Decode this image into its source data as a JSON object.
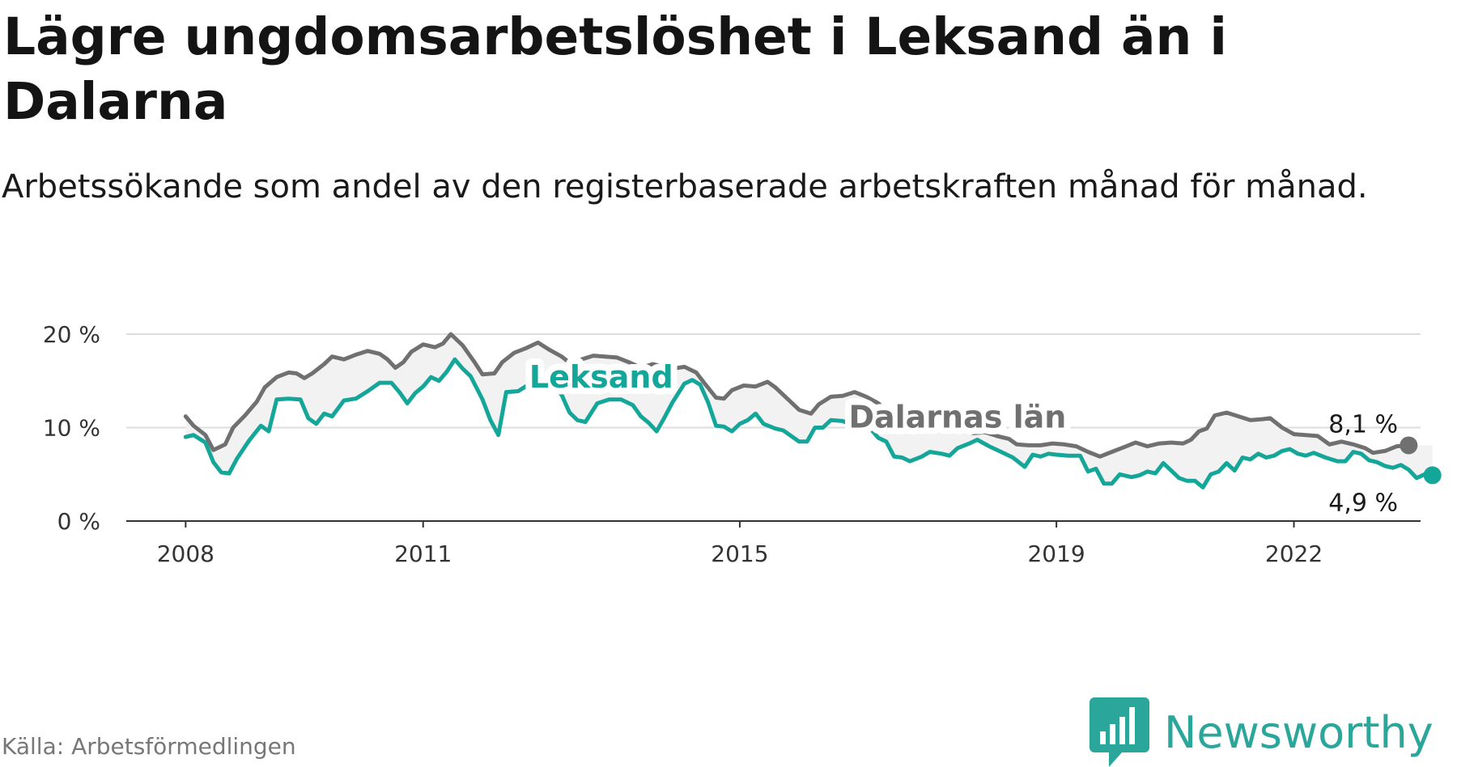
{
  "title": "Lägre ungdomsarbetslöshet i Leksand än i Dalarna",
  "subtitle": "Arbetssökande som andel av den registerbaserade arbetskraften månad för månad.",
  "source": "Källa: Arbetsförmedlingen",
  "brand": {
    "name": "Newsworthy",
    "icon": "bar-chart-speech-bubble-icon",
    "color": "#2aa69a"
  },
  "chart_data": {
    "type": "line",
    "title": "Lägre ungdomsarbetslöshet i Leksand än i Dalarna",
    "xlabel": "",
    "ylabel": "",
    "xlim": [
      2007.25,
      2023.6
    ],
    "ylim": [
      0,
      20
    ],
    "grid": true,
    "y_ticks": [
      {
        "value": 0,
        "label": "0 %"
      },
      {
        "value": 10,
        "label": "10 %"
      },
      {
        "value": 20,
        "label": "20 %"
      }
    ],
    "x_ticks": [
      {
        "value": 2008,
        "label": "2008"
      },
      {
        "value": 2011,
        "label": "2011"
      },
      {
        "value": 2015,
        "label": "2015"
      },
      {
        "value": 2019,
        "label": "2019"
      },
      {
        "value": 2022,
        "label": "2022"
      }
    ],
    "series": [
      {
        "name": "Dalarnas län",
        "color": "#707070",
        "last_value_label": "8,1 %",
        "points": [
          [
            2008.0,
            11.2
          ],
          [
            2008.1,
            10.2
          ],
          [
            2008.25,
            9.2
          ],
          [
            2008.35,
            7.6
          ],
          [
            2008.5,
            8.2
          ],
          [
            2008.6,
            10.0
          ],
          [
            2008.75,
            11.3
          ],
          [
            2008.9,
            12.8
          ],
          [
            2009.0,
            14.3
          ],
          [
            2009.15,
            15.4
          ],
          [
            2009.3,
            15.9
          ],
          [
            2009.4,
            15.8
          ],
          [
            2009.5,
            15.3
          ],
          [
            2009.6,
            15.8
          ],
          [
            2009.75,
            16.8
          ],
          [
            2009.85,
            17.6
          ],
          [
            2010.0,
            17.3
          ],
          [
            2010.15,
            17.8
          ],
          [
            2010.3,
            18.2
          ],
          [
            2010.45,
            17.9
          ],
          [
            2010.55,
            17.3
          ],
          [
            2010.65,
            16.4
          ],
          [
            2010.75,
            17.0
          ],
          [
            2010.85,
            18.1
          ],
          [
            2011.0,
            18.9
          ],
          [
            2011.15,
            18.6
          ],
          [
            2011.25,
            19.0
          ],
          [
            2011.35,
            20.0
          ],
          [
            2011.5,
            18.8
          ],
          [
            2011.65,
            17.0
          ],
          [
            2011.75,
            15.7
          ],
          [
            2011.9,
            15.8
          ],
          [
            2012.0,
            17.0
          ],
          [
            2012.15,
            18.0
          ],
          [
            2012.3,
            18.5
          ],
          [
            2012.45,
            19.1
          ],
          [
            2012.6,
            18.3
          ],
          [
            2012.75,
            17.6
          ],
          [
            2012.9,
            16.6
          ],
          [
            2013.0,
            17.3
          ],
          [
            2013.15,
            17.7
          ],
          [
            2013.3,
            17.6
          ],
          [
            2013.45,
            17.5
          ],
          [
            2013.6,
            17.0
          ],
          [
            2013.75,
            16.4
          ],
          [
            2013.9,
            16.8
          ],
          [
            2014.0,
            16.6
          ],
          [
            2014.15,
            16.3
          ],
          [
            2014.3,
            16.5
          ],
          [
            2014.45,
            15.9
          ],
          [
            2014.55,
            14.8
          ],
          [
            2014.7,
            13.2
          ],
          [
            2014.8,
            13.1
          ],
          [
            2014.9,
            14.0
          ],
          [
            2015.05,
            14.5
          ],
          [
            2015.2,
            14.4
          ],
          [
            2015.35,
            14.9
          ],
          [
            2015.45,
            14.3
          ],
          [
            2015.6,
            13.1
          ],
          [
            2015.75,
            11.9
          ],
          [
            2015.9,
            11.5
          ],
          [
            2016.0,
            12.5
          ],
          [
            2016.15,
            13.3
          ],
          [
            2016.3,
            13.4
          ],
          [
            2016.45,
            13.8
          ],
          [
            2016.6,
            13.3
          ],
          [
            2016.75,
            12.6
          ],
          [
            2016.9,
            11.5
          ],
          [
            2017.05,
            11.0
          ],
          [
            2017.2,
            10.8
          ],
          [
            2017.35,
            10.7
          ],
          [
            2017.5,
            10.2
          ],
          [
            2017.65,
            10.0
          ],
          [
            2017.8,
            9.8
          ],
          [
            2017.95,
            9.4
          ],
          [
            2018.1,
            9.5
          ],
          [
            2018.25,
            9.1
          ],
          [
            2018.4,
            8.8
          ],
          [
            2018.5,
            8.2
          ],
          [
            2018.65,
            8.1
          ],
          [
            2018.8,
            8.1
          ],
          [
            2018.95,
            8.3
          ],
          [
            2019.1,
            8.2
          ],
          [
            2019.25,
            8.0
          ],
          [
            2019.4,
            7.4
          ],
          [
            2019.55,
            6.9
          ],
          [
            2019.7,
            7.4
          ],
          [
            2019.85,
            7.9
          ],
          [
            2020.0,
            8.4
          ],
          [
            2020.15,
            8.0
          ],
          [
            2020.3,
            8.3
          ],
          [
            2020.45,
            8.4
          ],
          [
            2020.6,
            8.3
          ],
          [
            2020.7,
            8.7
          ],
          [
            2020.8,
            9.6
          ],
          [
            2020.9,
            9.9
          ],
          [
            2021.0,
            11.3
          ],
          [
            2021.15,
            11.6
          ],
          [
            2021.3,
            11.2
          ],
          [
            2021.45,
            10.8
          ],
          [
            2021.6,
            10.9
          ],
          [
            2021.7,
            11.0
          ],
          [
            2021.85,
            10.0
          ],
          [
            2022.0,
            9.3
          ],
          [
            2022.15,
            9.2
          ],
          [
            2022.3,
            9.1
          ],
          [
            2022.45,
            8.2
          ],
          [
            2022.6,
            8.5
          ],
          [
            2022.75,
            8.2
          ],
          [
            2022.9,
            7.8
          ],
          [
            2023.0,
            7.3
          ],
          [
            2023.15,
            7.5
          ],
          [
            2023.3,
            8.0
          ],
          [
            2023.45,
            8.1
          ]
        ]
      },
      {
        "name": "Leksand",
        "color": "#15a69a",
        "last_value_label": "4,9 %",
        "points": [
          [
            2008.0,
            9.0
          ],
          [
            2008.1,
            9.2
          ],
          [
            2008.25,
            8.4
          ],
          [
            2008.35,
            6.3
          ],
          [
            2008.45,
            5.2
          ],
          [
            2008.55,
            5.1
          ],
          [
            2008.65,
            6.7
          ],
          [
            2008.8,
            8.6
          ],
          [
            2008.95,
            10.2
          ],
          [
            2009.05,
            9.6
          ],
          [
            2009.15,
            13.0
          ],
          [
            2009.3,
            13.1
          ],
          [
            2009.45,
            13.0
          ],
          [
            2009.55,
            11.0
          ],
          [
            2009.65,
            10.4
          ],
          [
            2009.75,
            11.5
          ],
          [
            2009.85,
            11.2
          ],
          [
            2010.0,
            12.9
          ],
          [
            2010.15,
            13.1
          ],
          [
            2010.3,
            13.9
          ],
          [
            2010.45,
            14.8
          ],
          [
            2010.6,
            14.8
          ],
          [
            2010.7,
            13.8
          ],
          [
            2010.8,
            12.6
          ],
          [
            2010.9,
            13.7
          ],
          [
            2011.0,
            14.4
          ],
          [
            2011.1,
            15.4
          ],
          [
            2011.2,
            15.0
          ],
          [
            2011.3,
            16.0
          ],
          [
            2011.4,
            17.3
          ],
          [
            2011.5,
            16.3
          ],
          [
            2011.6,
            15.5
          ],
          [
            2011.75,
            13.0
          ],
          [
            2011.85,
            10.8
          ],
          [
            2011.95,
            9.2
          ],
          [
            2012.05,
            13.8
          ],
          [
            2012.2,
            13.9
          ],
          [
            2012.35,
            14.7
          ],
          [
            2012.5,
            15.3
          ],
          [
            2012.65,
            14.4
          ],
          [
            2012.75,
            13.5
          ],
          [
            2012.85,
            11.6
          ],
          [
            2012.95,
            10.8
          ],
          [
            2013.05,
            10.6
          ],
          [
            2013.2,
            12.6
          ],
          [
            2013.35,
            13.0
          ],
          [
            2013.5,
            13.0
          ],
          [
            2013.65,
            12.4
          ],
          [
            2013.75,
            11.2
          ],
          [
            2013.85,
            10.5
          ],
          [
            2013.95,
            9.6
          ],
          [
            2014.05,
            11.1
          ],
          [
            2014.15,
            12.7
          ],
          [
            2014.3,
            14.7
          ],
          [
            2014.4,
            15.1
          ],
          [
            2014.5,
            14.6
          ],
          [
            2014.6,
            12.7
          ],
          [
            2014.7,
            10.2
          ],
          [
            2014.8,
            10.1
          ],
          [
            2014.9,
            9.6
          ],
          [
            2015.0,
            10.4
          ],
          [
            2015.1,
            10.8
          ],
          [
            2015.2,
            11.5
          ],
          [
            2015.3,
            10.4
          ],
          [
            2015.45,
            9.9
          ],
          [
            2015.55,
            9.7
          ],
          [
            2015.65,
            9.1
          ],
          [
            2015.75,
            8.5
          ],
          [
            2015.85,
            8.5
          ],
          [
            2015.95,
            10.0
          ],
          [
            2016.05,
            10.0
          ],
          [
            2016.15,
            10.8
          ],
          [
            2016.3,
            10.7
          ],
          [
            2016.4,
            10.3
          ],
          [
            2016.5,
            10.5
          ],
          [
            2016.65,
            9.9
          ],
          [
            2016.75,
            8.9
          ],
          [
            2016.85,
            8.5
          ],
          [
            2016.95,
            6.9
          ],
          [
            2017.05,
            6.8
          ],
          [
            2017.15,
            6.4
          ],
          [
            2017.3,
            6.9
          ],
          [
            2017.4,
            7.4
          ],
          [
            2017.55,
            7.2
          ],
          [
            2017.65,
            7.0
          ],
          [
            2017.75,
            7.8
          ],
          [
            2017.9,
            8.3
          ],
          [
            2018.0,
            8.7
          ],
          [
            2018.15,
            8.0
          ],
          [
            2018.3,
            7.4
          ],
          [
            2018.45,
            6.8
          ],
          [
            2018.6,
            5.8
          ],
          [
            2018.7,
            7.1
          ],
          [
            2018.8,
            6.9
          ],
          [
            2018.9,
            7.2
          ],
          [
            2019.0,
            7.1
          ],
          [
            2019.15,
            7.0
          ],
          [
            2019.3,
            7.0
          ],
          [
            2019.4,
            5.3
          ],
          [
            2019.5,
            5.6
          ],
          [
            2019.6,
            4.0
          ],
          [
            2019.7,
            4.0
          ],
          [
            2019.8,
            5.0
          ],
          [
            2019.95,
            4.7
          ],
          [
            2020.05,
            4.9
          ],
          [
            2020.15,
            5.3
          ],
          [
            2020.25,
            5.1
          ],
          [
            2020.35,
            6.2
          ],
          [
            2020.45,
            5.4
          ],
          [
            2020.55,
            4.6
          ],
          [
            2020.65,
            4.3
          ],
          [
            2020.75,
            4.3
          ],
          [
            2020.85,
            3.6
          ],
          [
            2020.95,
            5.0
          ],
          [
            2021.05,
            5.3
          ],
          [
            2021.15,
            6.2
          ],
          [
            2021.25,
            5.4
          ],
          [
            2021.35,
            6.8
          ],
          [
            2021.45,
            6.6
          ],
          [
            2021.55,
            7.2
          ],
          [
            2021.65,
            6.8
          ],
          [
            2021.75,
            7.0
          ],
          [
            2021.85,
            7.5
          ],
          [
            2021.95,
            7.7
          ],
          [
            2022.05,
            7.2
          ],
          [
            2022.15,
            7.0
          ],
          [
            2022.25,
            7.3
          ],
          [
            2022.4,
            6.8
          ],
          [
            2022.55,
            6.4
          ],
          [
            2022.65,
            6.4
          ],
          [
            2022.75,
            7.4
          ],
          [
            2022.85,
            7.2
          ],
          [
            2022.95,
            6.5
          ],
          [
            2023.05,
            6.3
          ],
          [
            2023.15,
            5.9
          ],
          [
            2023.25,
            5.7
          ],
          [
            2023.35,
            6.0
          ],
          [
            2023.45,
            5.5
          ],
          [
            2023.55,
            4.6
          ],
          [
            2023.65,
            5.0
          ],
          [
            2023.75,
            4.9
          ]
        ]
      }
    ]
  }
}
